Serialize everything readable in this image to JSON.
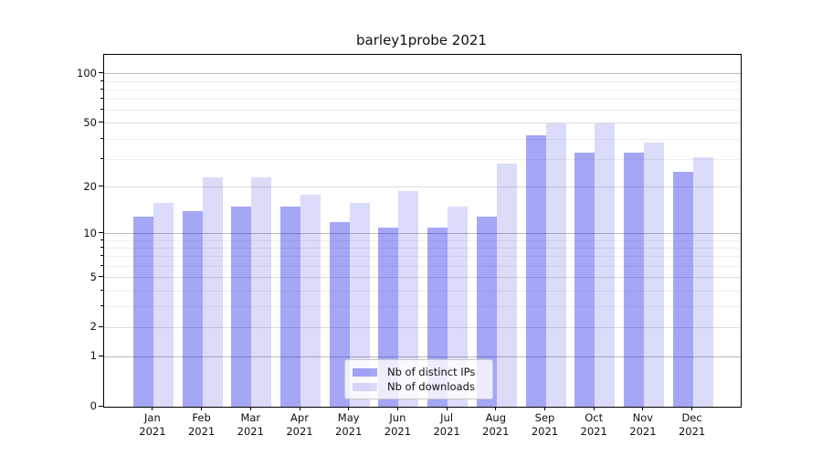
{
  "title": "barley1probe 2021",
  "chart_data": {
    "type": "bar",
    "title": "barley1probe 2021",
    "x_categories": [
      "Jan",
      "Feb",
      "Mar",
      "Apr",
      "May",
      "Jun",
      "Jul",
      "Aug",
      "Sep",
      "Oct",
      "Nov",
      "Dec"
    ],
    "x_year": "2021",
    "series": [
      {
        "name": "Nb of distinct IPs",
        "color": "rgba(0,0,230,0.35)",
        "hex_on_white": "#a8a8f6",
        "values": [
          13,
          14,
          15,
          15,
          12,
          11,
          11,
          13,
          42,
          33,
          33,
          25
        ]
      },
      {
        "name": "Nb of downloads",
        "color": "rgba(0,0,220,0.14)",
        "hex_on_white": "#dcdcfa",
        "values": [
          16,
          23,
          23,
          18,
          16,
          19,
          15,
          28,
          50,
          50,
          38,
          31
        ]
      }
    ],
    "y_axis": {
      "scale": "log1p",
      "major_ticks": [
        100,
        50,
        20,
        10,
        5,
        2,
        1,
        0
      ],
      "minor_ticks": [
        3,
        4,
        6,
        7,
        8,
        9,
        30,
        40,
        60,
        70,
        80,
        90
      ],
      "range": [
        0,
        130
      ]
    },
    "legend": {
      "entries": [
        "Nb of distinct IPs",
        "Nb of downloads"
      ],
      "location": "lower center"
    },
    "grid": true
  },
  "colors": {
    "spine": "#000000",
    "grid_minor": "#eeeeee",
    "grid_major": "#dcdcdc",
    "grid_decade": "#bcbcbc",
    "text": "#111111",
    "legend_border": "#c9c9c9"
  }
}
